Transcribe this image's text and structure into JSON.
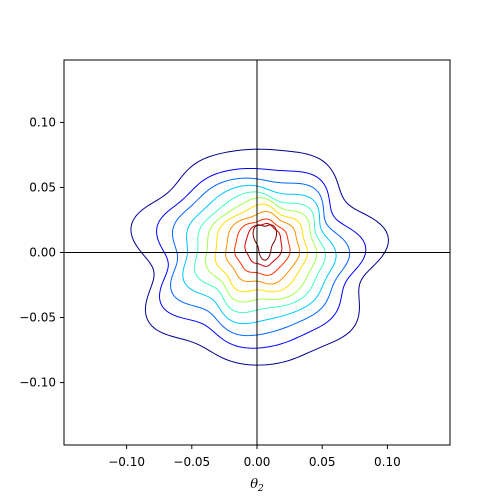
{
  "chart_data": {
    "type": "contour",
    "title": "",
    "xlabel": "θ2",
    "xlabel_main": "θ",
    "xlabel_sub": "2",
    "ylabel": "",
    "xlim": [
      -0.148,
      0.148
    ],
    "ylim": [
      -0.148,
      0.148
    ],
    "xticks": [
      -0.1,
      -0.05,
      0.0,
      0.05,
      0.1
    ],
    "xtick_labels": [
      "−0.10",
      "−0.05",
      "0.00",
      "0.05",
      "0.10"
    ],
    "yticks": [
      0.1,
      0.05,
      0.0,
      -0.05,
      -0.1
    ],
    "ytick_labels": [
      "0.10",
      "0.05",
      "0.00",
      "−0.05",
      "−0.10"
    ],
    "reference_lines": {
      "x": 0.0,
      "y": 0.0
    },
    "colormap": "jet",
    "contours": [
      {
        "level": 1,
        "color": "#00008b",
        "center": [
          0.0,
          -0.003
        ],
        "rx": 0.091,
        "ry": 0.083,
        "wobble": 0.06,
        "phase": 0.4
      },
      {
        "level": 2,
        "color": "#0000ff",
        "center": [
          0.0,
          -0.003
        ],
        "rx": 0.076,
        "ry": 0.069,
        "wobble": 0.055,
        "phase": 0.9
      },
      {
        "level": 3,
        "color": "#0066ff",
        "center": [
          0.0,
          -0.002
        ],
        "rx": 0.066,
        "ry": 0.06,
        "wobble": 0.05,
        "phase": 1.3
      },
      {
        "level": 4,
        "color": "#00c8ff",
        "center": [
          0.001,
          -0.001
        ],
        "rx": 0.057,
        "ry": 0.052,
        "wobble": 0.045,
        "phase": 1.8
      },
      {
        "level": 5,
        "color": "#40ffc0",
        "center": [
          0.002,
          0.0
        ],
        "rx": 0.049,
        "ry": 0.045,
        "wobble": 0.045,
        "phase": 2.2
      },
      {
        "level": 6,
        "color": "#a0ff50",
        "center": [
          0.003,
          0.001
        ],
        "rx": 0.042,
        "ry": 0.039,
        "wobble": 0.04,
        "phase": 2.7
      },
      {
        "level": 7,
        "color": "#ffe000",
        "center": [
          0.003,
          0.002
        ],
        "rx": 0.035,
        "ry": 0.033,
        "wobble": 0.04,
        "phase": 3.1
      },
      {
        "level": 8,
        "color": "#ff9000",
        "center": [
          0.004,
          0.003
        ],
        "rx": 0.028,
        "ry": 0.027,
        "wobble": 0.035,
        "phase": 3.6
      },
      {
        "level": 9,
        "color": "#ff3000",
        "center": [
          0.004,
          0.004
        ],
        "rx": 0.021,
        "ry": 0.021,
        "wobble": 0.03,
        "phase": 4.0
      },
      {
        "level": 10,
        "color": "#d00000",
        "center": [
          0.005,
          0.006
        ],
        "rx": 0.014,
        "ry": 0.016,
        "wobble": 0.03,
        "phase": 4.5
      },
      {
        "level": 11,
        "color": "#800000",
        "center": [
          0.006,
          0.01
        ],
        "rx": 0.008,
        "ry": 0.013,
        "wobble": 0.03,
        "phase": 0.3,
        "triangular": true
      }
    ]
  }
}
